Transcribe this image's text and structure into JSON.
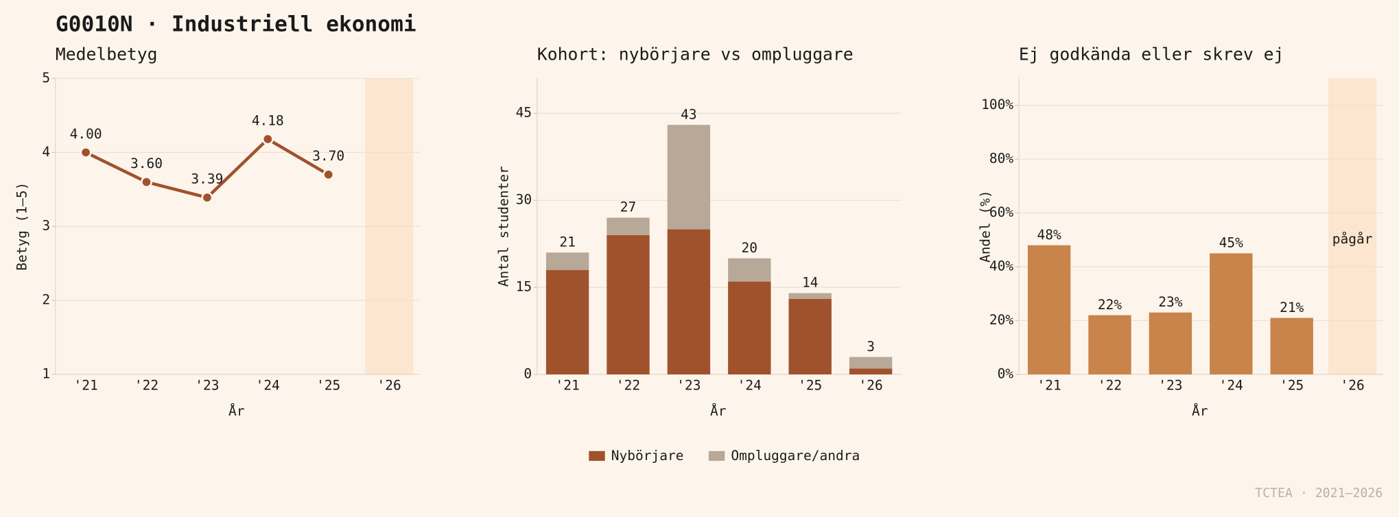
{
  "title": "G0010N · Industriell ekonomi",
  "footer": "TCTEA · 2021–2026",
  "chart_data": [
    {
      "type": "line",
      "title": "Medelbetyg",
      "y_label": "Betyg (1–5)",
      "x_label": "År",
      "categories": [
        "'21",
        "'22",
        "'23",
        "'24",
        "'25",
        "'26"
      ],
      "values": [
        4.0,
        3.6,
        3.39,
        4.18,
        3.7,
        null
      ],
      "value_labels": [
        "4.00",
        "3.60",
        "3.39",
        "4.18",
        "3.70",
        null
      ],
      "color": "#a0522d",
      "ylim": [
        1,
        5
      ],
      "yticks": [
        1,
        2,
        3,
        4,
        5
      ],
      "grid": true,
      "shaded_category": 5,
      "shade_color": "#fce6d0"
    },
    {
      "type": "stacked_bar",
      "title": "Kohort: nybörjare vs ompluggare",
      "y_label": "Antal studenter",
      "x_label": "År",
      "categories": [
        "'21",
        "'22",
        "'23",
        "'24",
        "'25",
        "'26"
      ],
      "series": [
        {
          "name": "Nybörjare",
          "color": "#a0522d",
          "values": [
            18,
            24,
            25,
            16,
            13,
            1
          ]
        },
        {
          "name": "Ompluggare/andra",
          "color": "#b8a898",
          "values": [
            3,
            3,
            18,
            4,
            1,
            2
          ]
        }
      ],
      "totals": [
        21,
        27,
        43,
        20,
        14,
        3
      ],
      "ylim": [
        0,
        51
      ],
      "yticks": [
        0,
        15,
        30,
        45
      ],
      "grid": true,
      "legend": "bottom"
    },
    {
      "type": "bar",
      "title": "Ej godkända eller skrev ej",
      "y_label": "Andel (%)",
      "x_label": "År",
      "categories": [
        "'21",
        "'22",
        "'23",
        "'24",
        "'25",
        "'26"
      ],
      "values": [
        48,
        22,
        23,
        45,
        21,
        null
      ],
      "value_labels": [
        "48%",
        "22%",
        "23%",
        "45%",
        "21%",
        null
      ],
      "color": "#c8844a",
      "ylim": [
        0,
        110
      ],
      "yticks": [
        {
          "value": 0,
          "label": "0%"
        },
        {
          "value": 20,
          "label": "20%"
        },
        {
          "value": 40,
          "label": "40%"
        },
        {
          "value": 60,
          "label": "60%"
        },
        {
          "value": 80,
          "label": "80%"
        },
        {
          "value": 100,
          "label": "100%"
        }
      ],
      "grid": true,
      "shaded_category": 5,
      "shade_color": "#fce6d0",
      "annotation": "pågår"
    }
  ]
}
